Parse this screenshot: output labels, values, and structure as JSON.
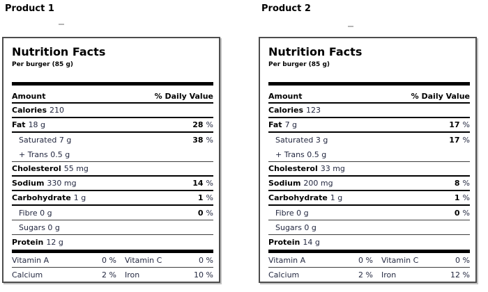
{
  "products": [
    {
      "heading": "Product 1",
      "title": "Nutrition Facts",
      "serving": "Per burger (85 g)",
      "columns": {
        "amount": "Amount",
        "daily_value": "% Daily Value"
      },
      "rows": {
        "calories": {
          "b": "Calories",
          "r": "210",
          "dvb": "",
          "dvr": ""
        },
        "fat": {
          "b": "Fat",
          "r": "18 g",
          "dvb": "28",
          "dvr": "%"
        },
        "saturated": {
          "b": "",
          "r": "Saturated 7 g",
          "dvb": "38",
          "dvr": "%"
        },
        "trans": {
          "b": "",
          "r": "+ Trans 0.5 g",
          "dvb": "",
          "dvr": ""
        },
        "cholesterol": {
          "b": "Cholesterol",
          "r": "55 mg",
          "dvb": "",
          "dvr": ""
        },
        "sodium": {
          "b": "Sodium",
          "r": "330 mg",
          "dvb": "14",
          "dvr": "%"
        },
        "carbohydrate": {
          "b": "Carbohydrate",
          "r": "1 g",
          "dvb": "1",
          "dvr": "%"
        },
        "fibre": {
          "b": "",
          "r": "Fibre 0 g",
          "dvb": "0",
          "dvr": "%"
        },
        "sugars": {
          "b": "",
          "r": "Sugars 0 g",
          "dvb": "",
          "dvr": ""
        },
        "protein": {
          "b": "Protein",
          "r": "12 g",
          "dvb": "",
          "dvr": ""
        }
      },
      "micros": [
        {
          "n1": "Vitamin A",
          "v1": "0 %",
          "n2": "Vitamin C",
          "v2": "0 %"
        },
        {
          "n1": "Calcium",
          "v1": "2 %",
          "n2": "Iron",
          "v2": "10 %"
        }
      ]
    },
    {
      "heading": "Product 2",
      "title": "Nutrition Facts",
      "serving": "Per burger (85 g)",
      "columns": {
        "amount": "Amount",
        "daily_value": "% Daily Value"
      },
      "rows": {
        "calories": {
          "b": "Calories",
          "r": "123",
          "dvb": "",
          "dvr": ""
        },
        "fat": {
          "b": "Fat",
          "r": "7 g",
          "dvb": "17",
          "dvr": "%"
        },
        "saturated": {
          "b": "",
          "r": "Saturated 3 g",
          "dvb": "17",
          "dvr": "%"
        },
        "trans": {
          "b": "",
          "r": "+ Trans 0.5 g",
          "dvb": "",
          "dvr": ""
        },
        "cholesterol": {
          "b": "Cholesterol",
          "r": "33 mg",
          "dvb": "",
          "dvr": ""
        },
        "sodium": {
          "b": "Sodium",
          "r": "200 mg",
          "dvb": "8",
          "dvr": "%"
        },
        "carbohydrate": {
          "b": "Carbohydrate",
          "r": "1 g",
          "dvb": "1",
          "dvr": "%"
        },
        "fibre": {
          "b": "",
          "r": "Fibre 0 g",
          "dvb": "0",
          "dvr": "%"
        },
        "sugars": {
          "b": "",
          "r": "Sugars 0 g",
          "dvb": "",
          "dvr": ""
        },
        "protein": {
          "b": "Protein",
          "r": "14 g",
          "dvb": "",
          "dvr": ""
        }
      },
      "micros": [
        {
          "n1": "Vitamin A",
          "v1": "0 %",
          "n2": "Vitamin C",
          "v2": "0 %"
        },
        {
          "n1": "Calcium",
          "v1": "2 %",
          "n2": "Iron",
          "v2": "12 %"
        }
      ]
    }
  ]
}
